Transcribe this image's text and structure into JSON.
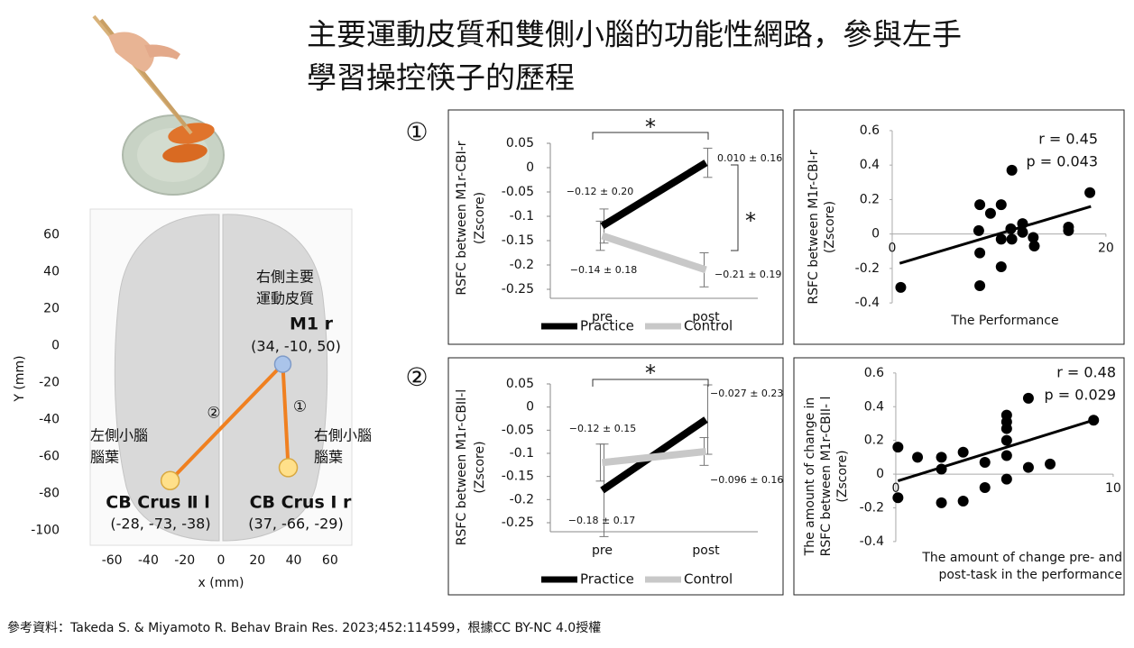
{
  "title_lines": [
    "主要運動皮質和雙側小腦的功能性網路，參與左手",
    "學習操控筷子的歷程"
  ],
  "reference": "參考資料：Takeda S. & Miyamoto R. Behav Brain Res. 2023;452:114599，根據CC BY-NC 4.0授權",
  "panel_labels": [
    "①",
    "②"
  ],
  "chart_data": [
    {
      "type": "map",
      "xlabel": "x (mm)",
      "ylabel": "Y (mm)",
      "xlim": [
        -72,
        72
      ],
      "ylim": [
        -108,
        74
      ],
      "xticks": [
        -60,
        -40,
        -20,
        0,
        20,
        40,
        60
      ],
      "yticks": [
        60,
        40,
        20,
        0,
        -20,
        -40,
        -60,
        -80,
        -100
      ],
      "line_color": "#f08020",
      "points": [
        {
          "label": "M1 r",
          "sublabel": [
            "右側主要",
            "運動皮質"
          ],
          "coords": "(34, -10, 50)",
          "x": 34,
          "y": -10,
          "color": "#aac4ea"
        },
        {
          "label": "CB Crus Ⅱ l",
          "sublabel": [
            "左側小腦",
            "腦葉"
          ],
          "coords": "(-28, -73, -38)",
          "x": -28,
          "y": -73,
          "color": "#ffe08a"
        },
        {
          "label": "CB Crus Ⅰ r",
          "sublabel": [
            "右側小腦",
            "腦葉"
          ],
          "coords": "(37, -66, -29)",
          "x": 37,
          "y": -66,
          "color": "#ffe08a"
        }
      ],
      "connections": [
        {
          "from": 0,
          "to": 1,
          "label": "②"
        },
        {
          "from": 0,
          "to": 2,
          "label": "①"
        }
      ]
    },
    {
      "type": "line",
      "ylabel": [
        "RSFC between M1r-CBI-r",
        "(Zscore)"
      ],
      "categories": [
        "pre",
        "post"
      ],
      "ylim": [
        -0.25,
        0.05
      ],
      "yticks": [
        0.05,
        0,
        -0.05,
        -0.1,
        -0.15,
        -0.2,
        -0.25
      ],
      "series": [
        {
          "name": "Practice",
          "color": "#000000",
          "values": [
            -0.12,
            0.01
          ],
          "errors": [
            0.035,
            0.03
          ],
          "value_labels": [
            "−0.12 ± 0.20",
            "0.010 ± 0.16"
          ]
        },
        {
          "name": "Control",
          "color": "#c8c8c8",
          "values": [
            -0.14,
            -0.21
          ],
          "errors": [
            0.03,
            0.035
          ],
          "value_labels": [
            "−0.14 ± 0.18",
            "−0.21 ± 0.19"
          ]
        }
      ],
      "annotations": [
        "*",
        "*"
      ],
      "legend": "bottom"
    },
    {
      "type": "scatter",
      "ylabel": [
        "RSFC between M1r-CBI-r",
        "(Zscore)"
      ],
      "xlabel": [
        "The Performance"
      ],
      "xlim": [
        -9.2,
        21.7
      ],
      "ylim": [
        -0.64,
        0.72
      ],
      "xticks": [
        0,
        20
      ],
      "yticks": [
        0.6,
        0.4,
        0.2,
        0,
        -0.2,
        -0.4
      ],
      "x": [
        0.8,
        8.2,
        9.2,
        10.2,
        11.2,
        8.1,
        8.2,
        8.2,
        10.2,
        10.2,
        11.1,
        11.2,
        12.2,
        12.2,
        13.2,
        13.3,
        16.5,
        16.5,
        18.5
      ],
      "y": [
        -0.31,
        0.17,
        0.12,
        0.17,
        0.37,
        0.02,
        -0.11,
        -0.3,
        -0.19,
        -0.03,
        0.03,
        -0.03,
        0.06,
        0.01,
        -0.02,
        -0.07,
        0.04,
        0.02,
        0.24
      ],
      "trendline": {
        "x": [
          0.7,
          18.6
        ],
        "y": [
          -0.17,
          0.16
        ]
      },
      "r_label": "r = 0.45",
      "p_label": "p = 0.043",
      "color": "#000000"
    },
    {
      "type": "line",
      "ylabel": [
        "RSFC between M1r-CBII-l",
        "(Zscore)"
      ],
      "categories": [
        "pre",
        "post"
      ],
      "ylim": [
        -0.25,
        0.05
      ],
      "yticks": [
        0.05,
        0,
        -0.05,
        -0.1,
        -0.15,
        -0.2,
        -0.25
      ],
      "series": [
        {
          "name": "Practice",
          "color": "#000000",
          "values": [
            -0.18,
            -0.027
          ],
          "errors": [
            0.1,
            0.075
          ],
          "value_labels": [
            "−0.18 ± 0.17",
            "−0.027 ± 0.23"
          ]
        },
        {
          "name": "Control",
          "color": "#c8c8c8",
          "values": [
            -0.12,
            -0.096
          ],
          "errors": [
            0.04,
            0.03
          ],
          "value_labels": [
            "−0.12 ± 0.15",
            "−0.096 ± 0.16"
          ]
        }
      ],
      "annotations": [
        "*"
      ],
      "legend": "bottom"
    },
    {
      "type": "scatter",
      "ylabel": [
        "The amount of change in",
        "RSFC between M1r-CBII- l",
        "(Zscore)"
      ],
      "xlabel": [
        "The amount of change pre- and",
        "post-task in the performance"
      ],
      "xlim": [
        -3.65,
        10.46
      ],
      "ylim": [
        -0.7,
        0.674
      ],
      "xticks": [
        0,
        10
      ],
      "yticks": [
        0.6,
        0.4,
        0.2,
        0,
        -0.2,
        -0.4
      ],
      "x": [
        0.1,
        0.1,
        1.0,
        2.1,
        2.1,
        2.1,
        3.1,
        3.1,
        4.1,
        4.1,
        5.1,
        5.1,
        5.1,
        5.1,
        5.1,
        5.1,
        6.1,
        6.1,
        7.1,
        9.1
      ],
      "y": [
        0.16,
        -0.14,
        0.1,
        0.1,
        0.03,
        -0.17,
        0.13,
        -0.16,
        0.07,
        -0.08,
        0.35,
        0.31,
        0.27,
        0.2,
        0.11,
        -0.03,
        0.45,
        0.04,
        0.06,
        0.32
      ],
      "trendline": {
        "x": [
          0.1,
          9.1
        ],
        "y": [
          -0.04,
          0.32
        ]
      },
      "r_label": "r = 0.48",
      "p_label": "p = 0.029",
      "color": "#000000"
    }
  ]
}
